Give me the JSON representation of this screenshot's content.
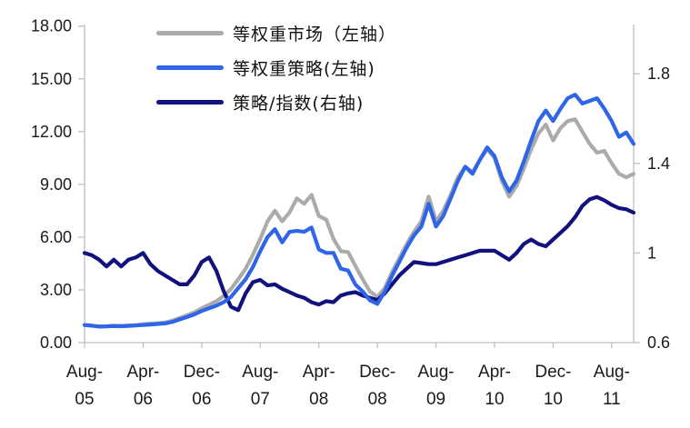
{
  "figure": {
    "background": "#ffffff",
    "axis_color": "#bfbfbf",
    "text_color": "#1a1a1a"
  },
  "legend": {
    "items": [
      {
        "label": "等权重市场（左轴）",
        "color": "#ababab",
        "series": "market"
      },
      {
        "label": "等权重策略(左轴)",
        "color": "#2f65e8",
        "series": "strategy"
      },
      {
        "label": "策略/指数(右轴)",
        "color": "#12127f",
        "series": "ratio"
      }
    ]
  },
  "chart_data": {
    "type": "line",
    "title": "",
    "xlabel": "",
    "ylabel_left": "",
    "ylabel_right": "",
    "grid": false,
    "legend_position": "top-left",
    "left_axis": {
      "min": 0,
      "max": 18,
      "tick_step": 3,
      "top_value": 18.09,
      "tick_labels": [
        "0.00",
        "3.00",
        "6.00",
        "9.00",
        "12.00",
        "15.00",
        "18.00"
      ],
      "tick_values": [
        0,
        3,
        6,
        9,
        12,
        15,
        18
      ]
    },
    "right_axis": {
      "min": 0.6,
      "max": 1.8,
      "top_value": 2.02,
      "tick_labels": [
        "0.6",
        "1",
        "1.4",
        "1.8"
      ],
      "tick_values": [
        0.6,
        1.0,
        1.4,
        1.8
      ]
    },
    "x_ticks": [
      {
        "line1": "Aug-",
        "line2": "05",
        "month_index": 0
      },
      {
        "line1": "Apr-",
        "line2": "06",
        "month_index": 8
      },
      {
        "line1": "Dec-",
        "line2": "06",
        "month_index": 16
      },
      {
        "line1": "Aug-",
        "line2": "07",
        "month_index": 24
      },
      {
        "line1": "Apr-",
        "line2": "08",
        "month_index": 32
      },
      {
        "line1": "Dec-",
        "line2": "08",
        "month_index": 40
      },
      {
        "line1": "Aug-",
        "line2": "09",
        "month_index": 48
      },
      {
        "line1": "Apr-",
        "line2": "10",
        "month_index": 56
      },
      {
        "line1": "Dec-",
        "line2": "10",
        "month_index": 64
      },
      {
        "line1": "Aug-",
        "line2": "11",
        "month_index": 72
      }
    ],
    "months": [
      "Aug-05",
      "Sep-05",
      "Oct-05",
      "Nov-05",
      "Dec-05",
      "Jan-06",
      "Feb-06",
      "Mar-06",
      "Apr-06",
      "May-06",
      "Jun-06",
      "Jul-06",
      "Aug-06",
      "Sep-06",
      "Oct-06",
      "Nov-06",
      "Dec-06",
      "Jan-07",
      "Feb-07",
      "Mar-07",
      "Apr-07",
      "May-07",
      "Jun-07",
      "Jul-07",
      "Aug-07",
      "Sep-07",
      "Oct-07",
      "Nov-07",
      "Dec-07",
      "Jan-08",
      "Feb-08",
      "Mar-08",
      "Apr-08",
      "May-08",
      "Jun-08",
      "Jul-08",
      "Aug-08",
      "Sep-08",
      "Oct-08",
      "Nov-08",
      "Dec-08",
      "Jan-09",
      "Feb-09",
      "Mar-09",
      "Apr-09",
      "May-09",
      "Jun-09",
      "Jul-09",
      "Aug-09",
      "Sep-09",
      "Oct-09",
      "Nov-09",
      "Dec-09",
      "Jan-10",
      "Feb-10",
      "Mar-10",
      "Apr-10",
      "May-10",
      "Jun-10",
      "Jul-10",
      "Aug-10",
      "Sep-10",
      "Oct-10",
      "Nov-10",
      "Dec-10",
      "Jan-11",
      "Feb-11",
      "Mar-11",
      "Apr-11",
      "May-11",
      "Jun-11",
      "Jul-11",
      "Aug-11",
      "Sep-11",
      "Oct-11",
      "Nov-11"
    ],
    "series": [
      {
        "name": "等权重市场（左轴）",
        "id": "market",
        "axis": "left",
        "color": "#ababab",
        "width": 4.2,
        "values": [
          1.0,
          0.96,
          0.92,
          0.93,
          0.96,
          0.95,
          0.97,
          1.0,
          1.05,
          1.08,
          1.1,
          1.14,
          1.25,
          1.4,
          1.55,
          1.72,
          1.95,
          2.15,
          2.35,
          2.65,
          3.05,
          3.6,
          4.2,
          5.0,
          5.9,
          6.9,
          7.5,
          6.9,
          7.4,
          8.2,
          7.9,
          8.4,
          7.2,
          7.0,
          5.9,
          5.2,
          5.15,
          4.35,
          3.6,
          2.9,
          2.6,
          3.1,
          4.0,
          4.8,
          5.6,
          6.3,
          6.9,
          8.3,
          6.9,
          7.5,
          8.4,
          9.4,
          10.0,
          9.7,
          10.4,
          11.0,
          10.5,
          9.2,
          8.3,
          8.9,
          9.9,
          11.0,
          11.9,
          12.4,
          11.5,
          12.2,
          12.6,
          12.7,
          12.0,
          11.3,
          10.8,
          10.9,
          10.2,
          9.6,
          9.4,
          9.6
        ]
      },
      {
        "name": "等权重策略(左轴)",
        "id": "strategy",
        "axis": "left",
        "color": "#2f65e8",
        "width": 4.2,
        "values": [
          1.0,
          0.96,
          0.91,
          0.92,
          0.94,
          0.93,
          0.95,
          0.97,
          1.0,
          1.03,
          1.06,
          1.09,
          1.18,
          1.32,
          1.45,
          1.6,
          1.8,
          1.95,
          2.1,
          2.3,
          2.6,
          3.1,
          3.6,
          4.3,
          5.2,
          6.0,
          6.45,
          5.7,
          6.3,
          6.35,
          6.3,
          6.55,
          5.3,
          5.1,
          5.1,
          4.2,
          4.1,
          3.3,
          2.9,
          2.4,
          2.2,
          2.9,
          3.8,
          4.6,
          5.4,
          6.1,
          6.6,
          7.9,
          6.6,
          7.2,
          8.2,
          9.2,
          10.0,
          9.6,
          10.4,
          11.1,
          10.6,
          9.4,
          8.6,
          9.2,
          10.3,
          11.5,
          12.6,
          13.2,
          12.6,
          13.3,
          13.9,
          14.1,
          13.6,
          13.75,
          13.9,
          13.3,
          12.6,
          11.7,
          11.95,
          11.3
        ]
      },
      {
        "name": "策略/指数(右轴)",
        "id": "ratio",
        "axis": "right",
        "color": "#12127f",
        "width": 4.2,
        "values": [
          1.0,
          0.99,
          0.97,
          0.94,
          0.97,
          0.94,
          0.97,
          0.98,
          1.0,
          0.95,
          0.92,
          0.9,
          0.88,
          0.86,
          0.86,
          0.9,
          0.96,
          0.98,
          0.92,
          0.83,
          0.76,
          0.745,
          0.82,
          0.87,
          0.88,
          0.855,
          0.86,
          0.84,
          0.825,
          0.81,
          0.8,
          0.78,
          0.77,
          0.785,
          0.78,
          0.81,
          0.82,
          0.825,
          0.81,
          0.8,
          0.79,
          0.82,
          0.86,
          0.9,
          0.93,
          0.96,
          0.955,
          0.95,
          0.95,
          0.96,
          0.97,
          0.98,
          0.99,
          1.0,
          1.01,
          1.01,
          1.01,
          0.99,
          0.97,
          1.0,
          1.04,
          1.06,
          1.04,
          1.03,
          1.06,
          1.09,
          1.12,
          1.16,
          1.21,
          1.24,
          1.25,
          1.235,
          1.215,
          1.2,
          1.195,
          1.18
        ]
      }
    ]
  }
}
